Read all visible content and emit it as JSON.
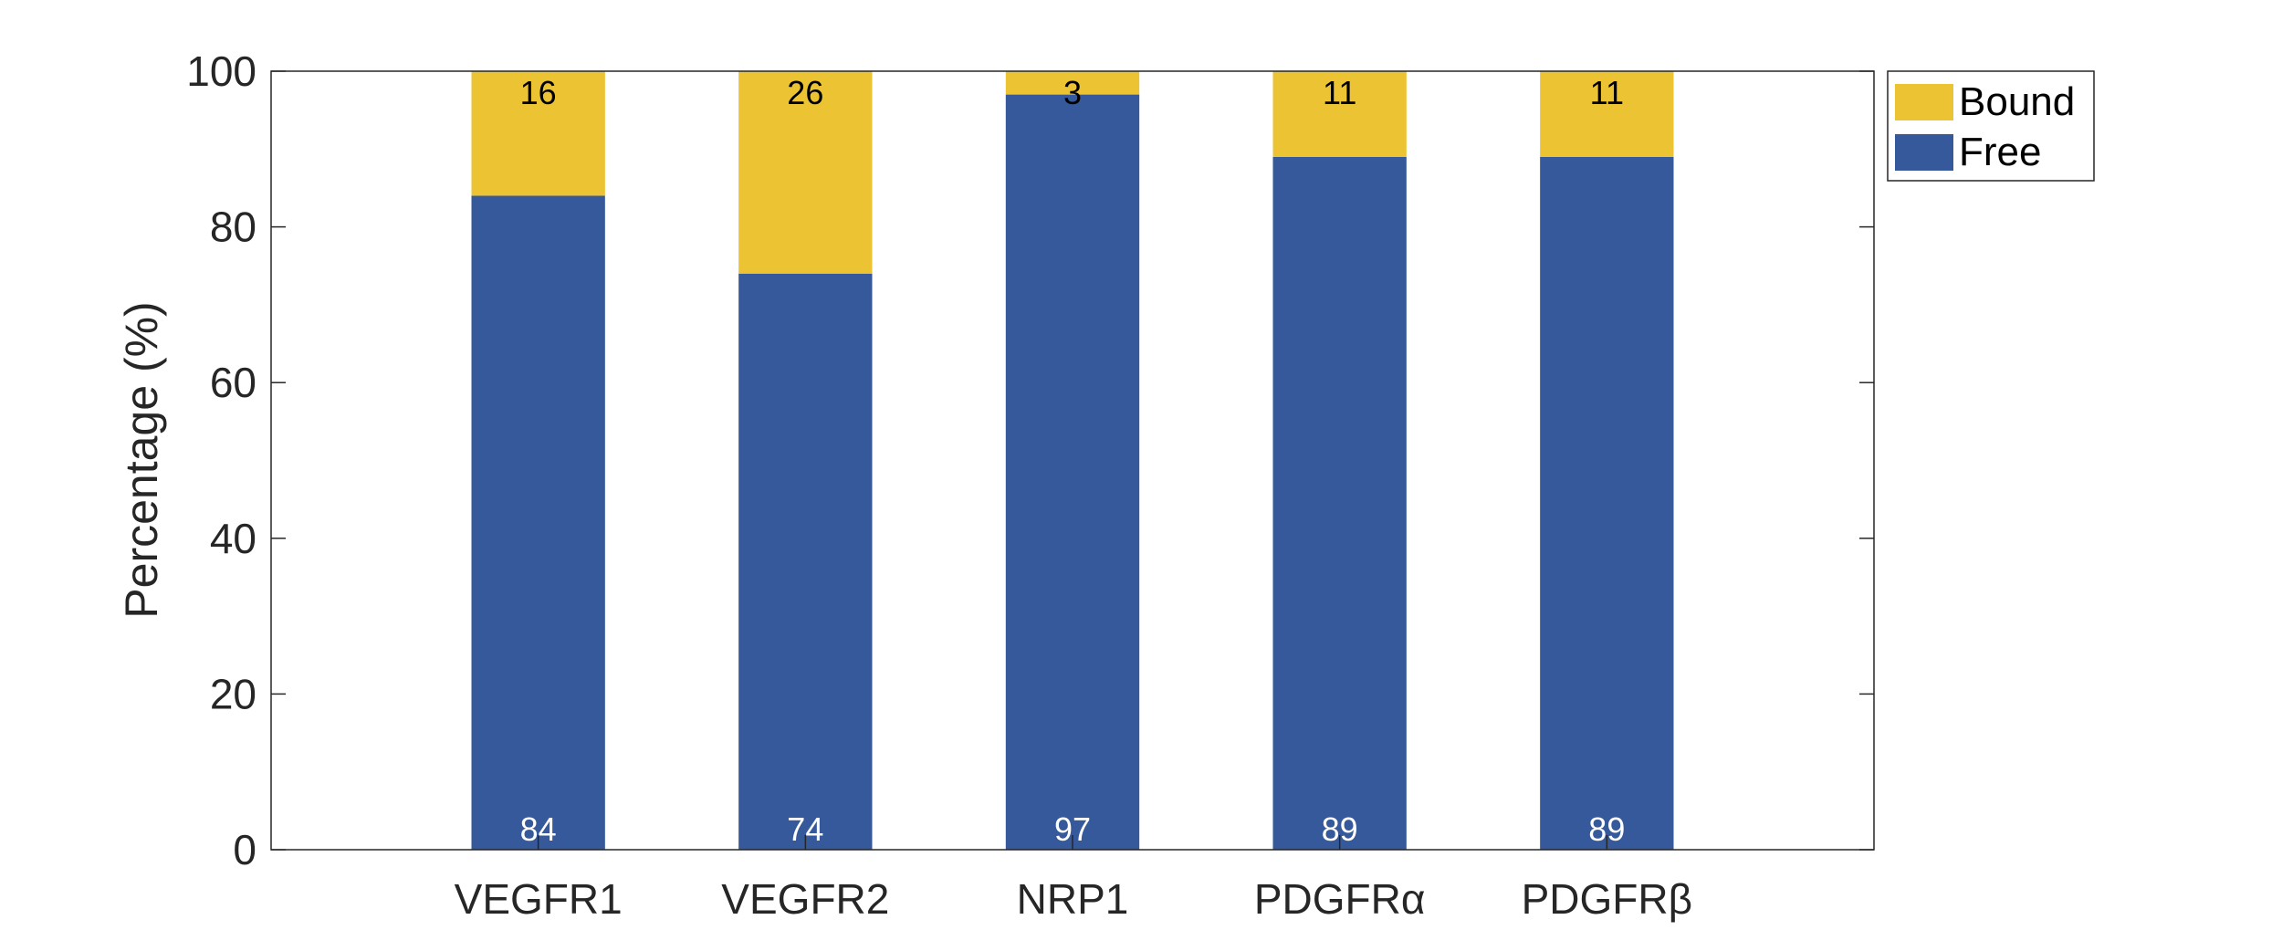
{
  "chart_data": {
    "type": "bar",
    "stacked": true,
    "categories": [
      "VEGFR1",
      "VEGFR2",
      "NRP1",
      "PDGFRα",
      "PDGFRβ"
    ],
    "series": [
      {
        "name": "Free",
        "values": [
          84,
          74,
          97,
          89,
          89
        ],
        "color": "#35599A",
        "label_color": "#ffffff"
      },
      {
        "name": "Bound",
        "values": [
          16,
          26,
          3,
          11,
          11
        ],
        "color": "#EBC333",
        "label_color": "#000000"
      }
    ],
    "legend_order": [
      "Bound",
      "Free"
    ],
    "ylabel": "Percentage (%)",
    "xlabel": "",
    "title": "",
    "ylim": [
      0,
      100
    ],
    "yticks": [
      0,
      20,
      40,
      60,
      80,
      100
    ],
    "grid": false,
    "legend_position": "outside-top-right"
  }
}
